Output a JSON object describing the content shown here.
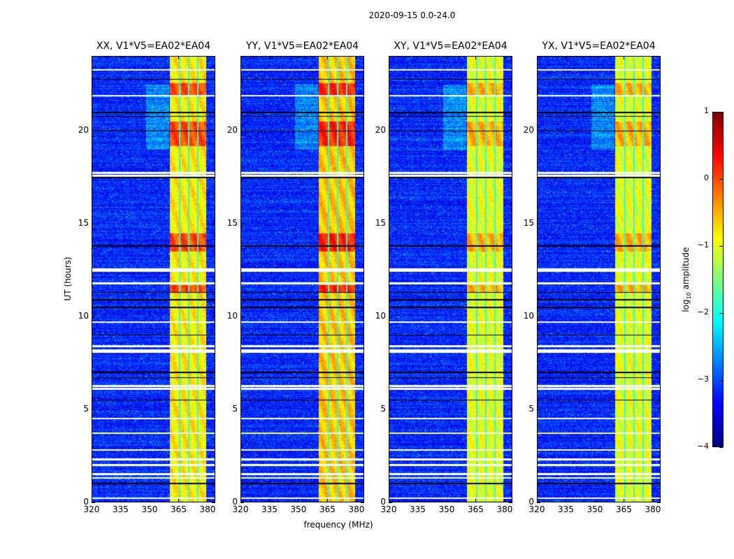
{
  "chart_data": {
    "type": "heatmap",
    "title": "2020-09-15 0.0-24.0",
    "xlabel": "frequency (MHz)",
    "ylabel": "UT (hours)",
    "xlim": [
      320,
      384
    ],
    "ylim": [
      0,
      24
    ],
    "xticks": [
      320,
      335,
      350,
      365,
      380
    ],
    "yticks": [
      0,
      5,
      10,
      15,
      20
    ],
    "panels": [
      {
        "title": "XX, V1*V5=EA02*EA04",
        "band_level": -0.8
      },
      {
        "title": "YY, V1*V5=EA02*EA04",
        "band_level": -0.6
      },
      {
        "title": "XY, V1*V5=EA02*EA04",
        "band_level": -1.0
      },
      {
        "title": "YX, V1*V5=EA02*EA04",
        "band_level": -1.0
      }
    ],
    "rfi_band_mhz": [
      360.5,
      379.5
    ],
    "channel_gaps_mhz": [
      365.5,
      370.3,
      375.0
    ],
    "background_level": -3.2,
    "flagged_white_hours": [
      23.3,
      21.9,
      17.75,
      17.6,
      12.55,
      12.45,
      11.8,
      9.7,
      8.4,
      8.2,
      8.1,
      6.25,
      6.1,
      4.5,
      3.7,
      2.8,
      2.3,
      2.0,
      1.5,
      1.3,
      0.2
    ],
    "flagged_black_hours": [
      22.8,
      21.0,
      20.8,
      20.0,
      17.5,
      13.8,
      11.3,
      10.9,
      10.5,
      9.0,
      7.0,
      6.7,
      5.5,
      1.0
    ],
    "high_amplitude_hours": [
      [
        21.9,
        22.6
      ],
      [
        19.2,
        20.5
      ],
      [
        13.5,
        14.5
      ],
      [
        11.3,
        11.7
      ]
    ],
    "colorbar": {
      "label": "log10 amplitude",
      "range": [
        -4,
        1
      ],
      "ticks": [
        1,
        0,
        -1,
        -2,
        -3,
        -4
      ],
      "colormap": "jet"
    }
  }
}
